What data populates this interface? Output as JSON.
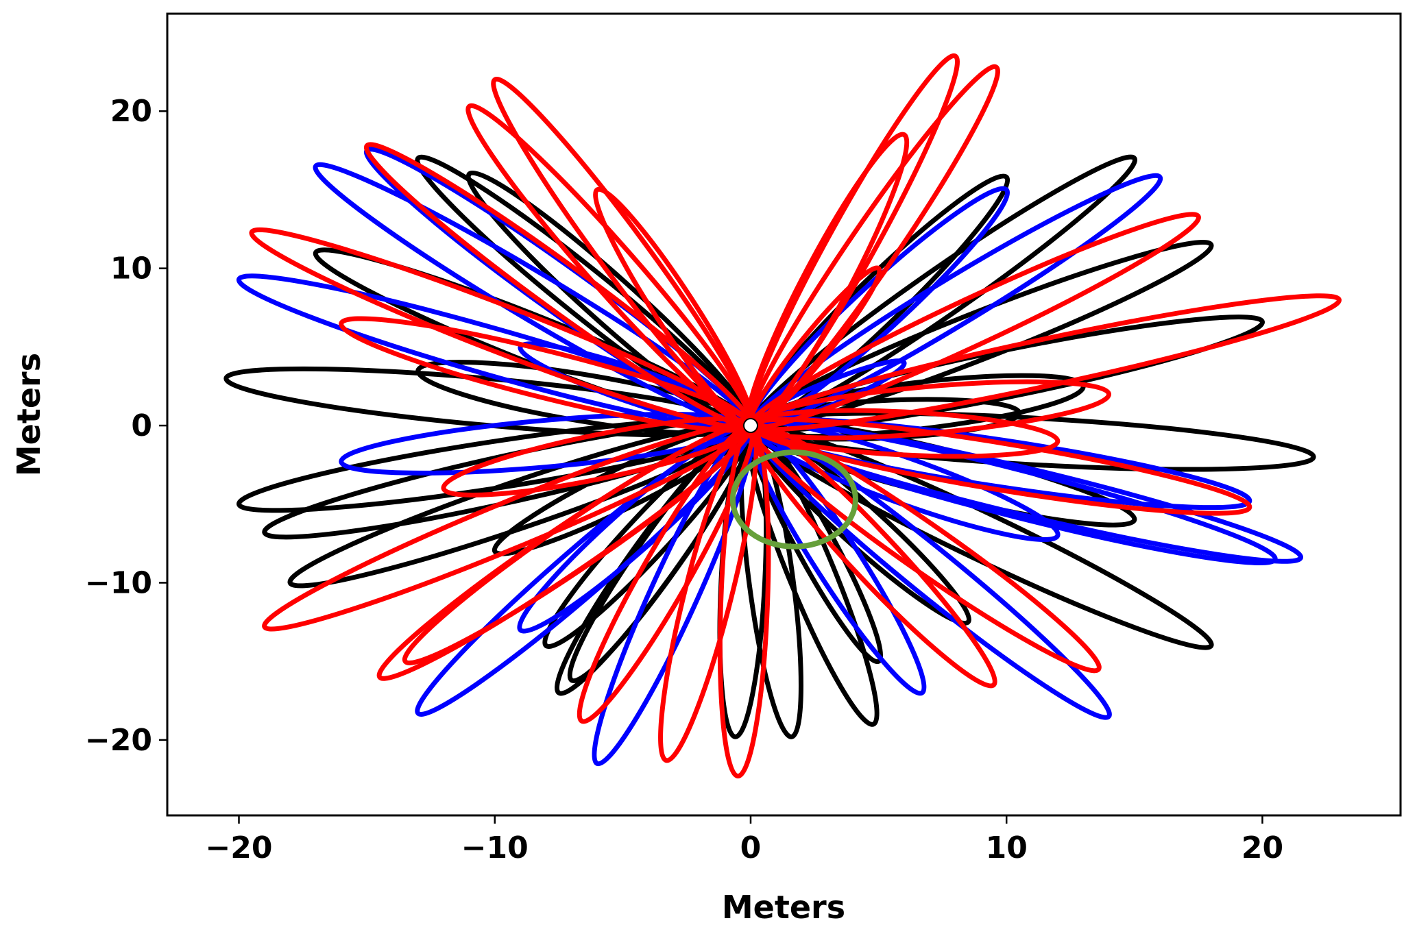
{
  "chart_data": {
    "type": "line",
    "xlabel": "Meters",
    "ylabel": "Meters",
    "xlim": [
      -22.8,
      25.4
    ],
    "ylim": [
      -24.8,
      26.2
    ],
    "xticks": [
      -20,
      -10,
      0,
      10,
      20
    ],
    "yticks": [
      -20,
      -10,
      0,
      10,
      20
    ],
    "xtick_labels": [
      "−20",
      "−10",
      "0",
      "10",
      "20"
    ],
    "ytick_labels": [
      "−20",
      "−10",
      "0",
      "10",
      "20"
    ],
    "grid": false,
    "colors": {
      "red": "#ff0000",
      "black": "#000000",
      "blue": "#0000ff",
      "green": "#66a03a",
      "origin": "#ffffff"
    },
    "loops": [
      {
        "color": "black",
        "tip": [
          -20.5,
          3
        ]
      },
      {
        "color": "black",
        "tip": [
          22,
          -2
        ]
      },
      {
        "color": "black",
        "tip": [
          18,
          11.5
        ]
      },
      {
        "color": "black",
        "tip": [
          15,
          17
        ]
      },
      {
        "color": "black",
        "tip": [
          10,
          15.8
        ]
      },
      {
        "color": "black",
        "tip": [
          -18,
          -10
        ]
      },
      {
        "color": "black",
        "tip": [
          -20,
          -5
        ]
      },
      {
        "color": "black",
        "tip": [
          -19,
          -6.8
        ]
      },
      {
        "color": "black",
        "tip": [
          18,
          -14
        ]
      },
      {
        "color": "black",
        "tip": [
          4.8,
          -19
        ]
      },
      {
        "color": "black",
        "tip": [
          1.6,
          -19.8
        ]
      },
      {
        "color": "black",
        "tip": [
          -0.6,
          -19.8
        ]
      },
      {
        "color": "black",
        "tip": [
          -7.5,
          -17
        ]
      },
      {
        "color": "black",
        "tip": [
          -7,
          -16.2
        ]
      },
      {
        "color": "black",
        "tip": [
          -8,
          -14
        ]
      },
      {
        "color": "black",
        "tip": [
          8.5,
          -12.5
        ]
      },
      {
        "color": "black",
        "tip": [
          13,
          2.5
        ]
      },
      {
        "color": "black",
        "tip": [
          -17,
          11
        ]
      },
      {
        "color": "black",
        "tip": [
          -13,
          17
        ]
      },
      {
        "color": "black",
        "tip": [
          -11,
          16
        ]
      },
      {
        "color": "black",
        "tip": [
          20,
          6.6
        ]
      },
      {
        "color": "black",
        "tip": [
          15,
          -6
        ]
      },
      {
        "color": "black",
        "tip": [
          10.5,
          0.8
        ]
      },
      {
        "color": "black",
        "tip": [
          -13,
          3.5
        ]
      },
      {
        "color": "black",
        "tip": [
          -10,
          -8
        ]
      },
      {
        "color": "black",
        "tip": [
          5,
          -15
        ]
      },
      {
        "color": "blue",
        "tip": [
          -20,
          9.3
        ]
      },
      {
        "color": "blue",
        "tip": [
          -17,
          16.5
        ]
      },
      {
        "color": "blue",
        "tip": [
          -15,
          17.5
        ]
      },
      {
        "color": "blue",
        "tip": [
          16,
          15.8
        ]
      },
      {
        "color": "blue",
        "tip": [
          10,
          15
        ]
      },
      {
        "color": "blue",
        "tip": [
          21.5,
          -8.4
        ]
      },
      {
        "color": "blue",
        "tip": [
          20.5,
          -8.5
        ]
      },
      {
        "color": "blue",
        "tip": [
          19.5,
          -4.8
        ]
      },
      {
        "color": "blue",
        "tip": [
          14,
          -18.5
        ]
      },
      {
        "color": "blue",
        "tip": [
          6.7,
          -17
        ]
      },
      {
        "color": "blue",
        "tip": [
          -6,
          -21.5
        ]
      },
      {
        "color": "blue",
        "tip": [
          -13,
          -18.3
        ]
      },
      {
        "color": "blue",
        "tip": [
          -9,
          -13
        ]
      },
      {
        "color": "blue",
        "tip": [
          -16,
          -2.3
        ]
      },
      {
        "color": "blue",
        "tip": [
          -9,
          5
        ]
      },
      {
        "color": "blue",
        "tip": [
          6,
          4
        ]
      },
      {
        "color": "blue",
        "tip": [
          12,
          -7
        ]
      },
      {
        "color": "red",
        "tip": [
          8,
          23.5
        ]
      },
      {
        "color": "red",
        "tip": [
          9.6,
          22.8
        ]
      },
      {
        "color": "red",
        "tip": [
          -10,
          22
        ]
      },
      {
        "color": "red",
        "tip": [
          -11,
          20.3
        ]
      },
      {
        "color": "red",
        "tip": [
          -19.5,
          12.3
        ]
      },
      {
        "color": "red",
        "tip": [
          23,
          8
        ]
      },
      {
        "color": "red",
        "tip": [
          -19,
          -12.8
        ]
      },
      {
        "color": "red",
        "tip": [
          -14.5,
          -16
        ]
      },
      {
        "color": "red",
        "tip": [
          -13.5,
          -15
        ]
      },
      {
        "color": "red",
        "tip": [
          -0.5,
          -22.3
        ]
      },
      {
        "color": "red",
        "tip": [
          -3.3,
          -21.3
        ]
      },
      {
        "color": "red",
        "tip": [
          -6.6,
          -18.8
        ]
      },
      {
        "color": "red",
        "tip": [
          13.6,
          -15.5
        ]
      },
      {
        "color": "red",
        "tip": [
          9.5,
          -16.5
        ]
      },
      {
        "color": "red",
        "tip": [
          19.5,
          -5.2
        ]
      },
      {
        "color": "red",
        "tip": [
          17.5,
          13.3
        ]
      },
      {
        "color": "red",
        "tip": [
          -15,
          17.8
        ]
      },
      {
        "color": "red",
        "tip": [
          6,
          18.5
        ]
      },
      {
        "color": "red",
        "tip": [
          -6,
          15
        ]
      },
      {
        "color": "red",
        "tip": [
          5,
          10
        ]
      },
      {
        "color": "red",
        "tip": [
          -16,
          6.5
        ]
      },
      {
        "color": "red",
        "tip": [
          14,
          2
        ]
      },
      {
        "color": "red",
        "tip": [
          12,
          -1
        ]
      },
      {
        "color": "red",
        "tip": [
          -12,
          -4
        ]
      }
    ],
    "green_ellipse": {
      "center": [
        1.7,
        -4.7
      ],
      "semi_axes": [
        2.4,
        3.0
      ]
    },
    "origin_point": [
      0,
      0
    ]
  }
}
